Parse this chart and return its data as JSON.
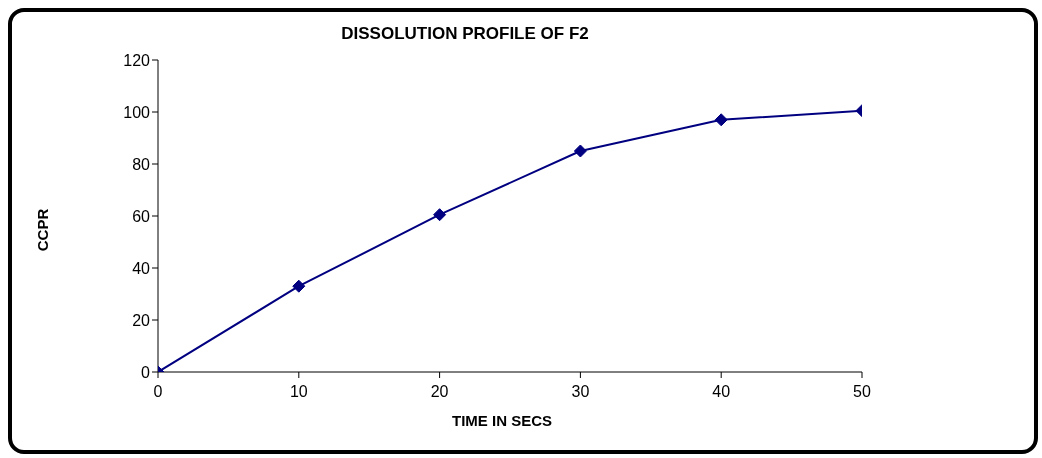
{
  "chart_data": {
    "type": "line",
    "title": "DISSOLUTION PROFILE OF F2",
    "xlabel": "TIME IN SECS",
    "ylabel": "CCPR",
    "x": [
      0,
      10,
      20,
      30,
      40,
      50
    ],
    "series": [
      {
        "color": "#000080",
        "values": [
          0,
          33,
          60.5,
          85,
          97,
          100.5
        ]
      }
    ],
    "xlim": [
      0,
      50
    ],
    "xticks": [
      0,
      10,
      20,
      30,
      40,
      50
    ],
    "ylim": [
      0,
      120
    ],
    "yticks": [
      0,
      20,
      40,
      60,
      80,
      100,
      120
    ],
    "grid": false,
    "legend": false,
    "marker": "diamond",
    "line_style": "solid"
  }
}
